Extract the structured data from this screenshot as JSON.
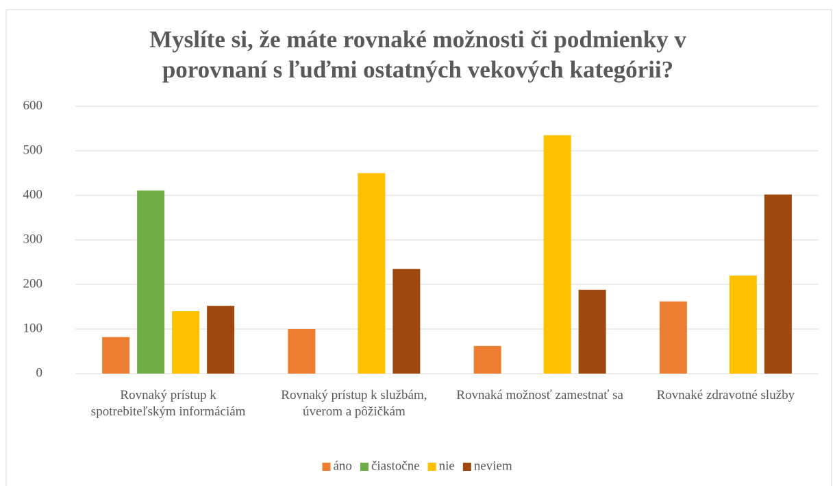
{
  "chart_data": {
    "type": "bar",
    "title": "Myslíte si, že máte rovnaké možnosti či podmienky v porovnaní s ľuďmi ostatných vekových kategórii?",
    "categories": [
      "Rovnaký prístup k spotrebiteľským informáciám",
      "Rovnaký prístup k službám, úverom a pôžičkám",
      "Rovnaká možnosť zamestnať sa",
      "Rovnaké zdravotné služby"
    ],
    "series": [
      {
        "name": "áno",
        "color": "#ed7d31",
        "values": [
          82,
          100,
          62,
          162
        ]
      },
      {
        "name": "čiastočne",
        "color": "#70ad47",
        "values": [
          411,
          null,
          null,
          null
        ]
      },
      {
        "name": "nie",
        "color": "#ffc000",
        "values": [
          140,
          450,
          535,
          220
        ]
      },
      {
        "name": "neviem",
        "color": "#9e480e",
        "values": [
          152,
          235,
          188,
          402
        ]
      }
    ],
    "ylim": [
      0,
      600
    ],
    "yticks": [
      0,
      100,
      200,
      300,
      400,
      500,
      600
    ],
    "grid": true,
    "legend": "bottom"
  }
}
